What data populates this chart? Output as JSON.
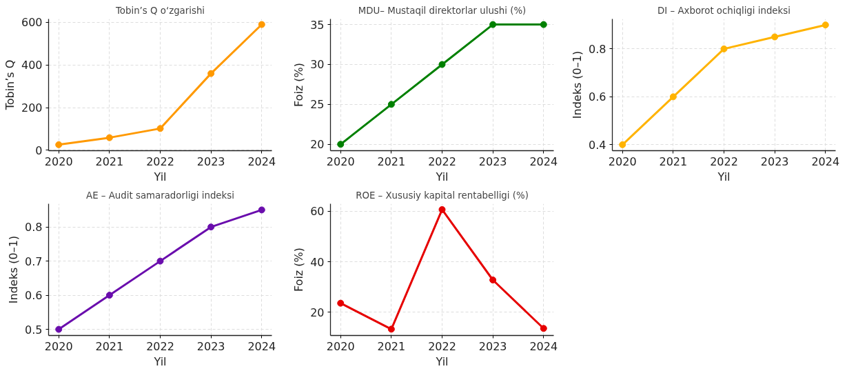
{
  "chart_data": [
    {
      "type": "line",
      "title": "Tobin’s Q o‘zgarishi",
      "xlabel": "Yil",
      "ylabel": "Tobin’s Q",
      "x": [
        2020,
        2021,
        2022,
        2023,
        2024
      ],
      "xlim": [
        2019.8,
        2024.2
      ],
      "xticks": [
        2020,
        2021,
        2022,
        2023,
        2024
      ],
      "ylim": [
        -2,
        616
      ],
      "yticks": [
        0,
        200,
        400,
        600
      ],
      "grid": true,
      "marker": "circle",
      "series": [
        {
          "color": "#ff9900",
          "values": [
            26,
            59,
            102,
            360,
            590
          ]
        }
      ]
    },
    {
      "type": "line",
      "title": "MDU– Mustaqil direktorlar ulushi (%)",
      "xlabel": "Yil",
      "ylabel": "Foiz (%)",
      "x": [
        2020,
        2021,
        2022,
        2023,
        2024
      ],
      "xlim": [
        2019.8,
        2024.2
      ],
      "xticks": [
        2020,
        2021,
        2022,
        2023,
        2024
      ],
      "ylim": [
        19.2,
        35.7
      ],
      "yticks": [
        20,
        25,
        30,
        35
      ],
      "grid": true,
      "marker": "circle",
      "series": [
        {
          "color": "#008000",
          "values": [
            20,
            25,
            30,
            35,
            35
          ]
        }
      ]
    },
    {
      "type": "line",
      "title": "DI – Axborot ochiqligi indeksi",
      "xlabel": "Yil",
      "ylabel": "Indeks (0–1)",
      "x": [
        2020,
        2021,
        2022,
        2023,
        2024
      ],
      "xlim": [
        2019.8,
        2024.2
      ],
      "xticks": [
        2020,
        2021,
        2022,
        2023,
        2024
      ],
      "ylim": [
        0.375,
        0.925
      ],
      "yticks": [
        0.4,
        0.6,
        0.8
      ],
      "grid": true,
      "marker": "circle",
      "series": [
        {
          "color": "#ffb300",
          "values": [
            0.4,
            0.6,
            0.8,
            0.85,
            0.9
          ]
        }
      ]
    },
    {
      "type": "line",
      "title": "AE – Audit samaradorligi indeksi",
      "xlabel": "Yil",
      "ylabel": "Indeks (0–1)",
      "x": [
        2020,
        2021,
        2022,
        2023,
        2024
      ],
      "xlim": [
        2019.8,
        2024.2
      ],
      "xticks": [
        2020,
        2021,
        2022,
        2023,
        2024
      ],
      "ylim": [
        0.482,
        0.868
      ],
      "yticks": [
        0.5,
        0.6,
        0.7,
        0.8
      ],
      "grid": true,
      "marker": "circle",
      "series": [
        {
          "color": "#6a0dad",
          "values": [
            0.5,
            0.6,
            0.7,
            0.8,
            0.85
          ]
        }
      ]
    },
    {
      "type": "line",
      "title": "ROE – Xususiy kapital rentabelligi (%)",
      "xlabel": "Yil",
      "ylabel": "Foiz (%)",
      "x": [
        2020,
        2021,
        2022,
        2023,
        2024
      ],
      "xlim": [
        2019.8,
        2024.2
      ],
      "xticks": [
        2020,
        2021,
        2022,
        2023,
        2024
      ],
      "ylim": [
        10.8,
        63
      ],
      "yticks": [
        20,
        40,
        60
      ],
      "grid": true,
      "marker": "circle",
      "series": [
        {
          "color": "#e60000",
          "values": [
            23.6,
            13.3,
            60.7,
            32.8,
            13.6
          ]
        }
      ]
    }
  ]
}
